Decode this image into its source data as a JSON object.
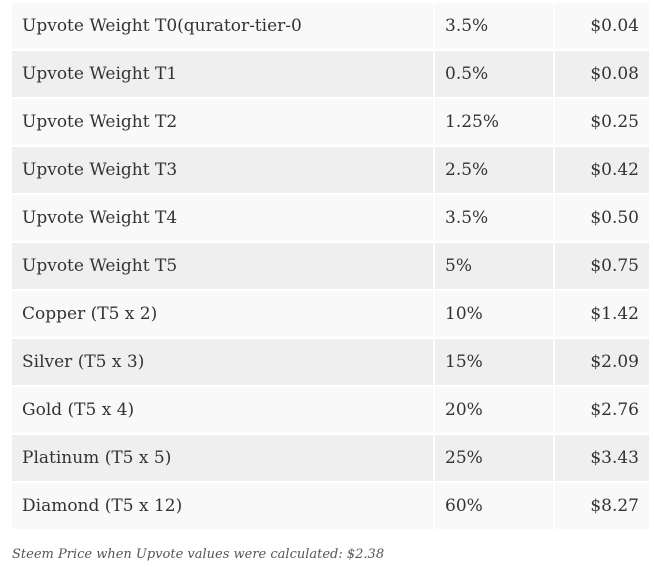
{
  "table": {
    "rows": [
      {
        "name": "Upvote Weight T0(qurator-tier-0",
        "weight": "3.5%",
        "value": "$0.04"
      },
      {
        "name": "Upvote Weight T1",
        "weight": "0.5%",
        "value": "$0.08"
      },
      {
        "name": "Upvote Weight T2",
        "weight": "1.25%",
        "value": "$0.25"
      },
      {
        "name": "Upvote Weight T3",
        "weight": "2.5%",
        "value": "$0.42"
      },
      {
        "name": "Upvote Weight T4",
        "weight": "3.5%",
        "value": "$0.50"
      },
      {
        "name": "Upvote Weight T5",
        "weight": "5%",
        "value": "$0.75"
      },
      {
        "name": "Copper (T5 x 2)",
        "weight": "10%",
        "value": "$1.42"
      },
      {
        "name": "Silver (T5 x 3)",
        "weight": "15%",
        "value": "$2.09"
      },
      {
        "name": "Gold (T5 x 4)",
        "weight": "20%",
        "value": "$2.76"
      },
      {
        "name": "Platinum (T5 x 5)",
        "weight": "25%",
        "value": "$3.43"
      },
      {
        "name": "Diamond (T5 x 12)",
        "weight": "60%",
        "value": "$8.27"
      }
    ]
  },
  "footnote": "Steem Price when Upvote values were calculated: $2.38",
  "colors": {
    "row_odd": "#f9f9f9",
    "row_even": "#efefef",
    "text": "#333333"
  }
}
